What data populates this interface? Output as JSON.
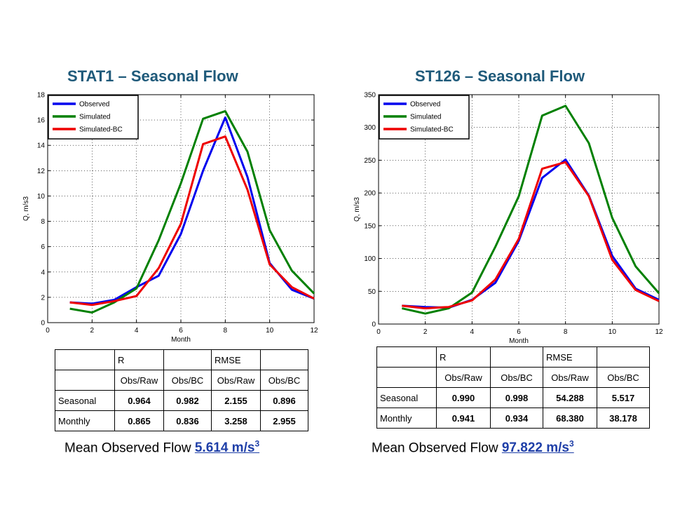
{
  "left": {
    "title": "STAT1  – Seasonal Flow",
    "table": {
      "group_headers": [
        "R",
        "RMSE"
      ],
      "sub_headers": [
        "Obs/Raw",
        "Obs/BC",
        "Obs/Raw",
        "Obs/BC"
      ],
      "rows": [
        {
          "label": "Seasonal",
          "values": [
            "0.964",
            "0.982",
            "2.155",
            "0.896"
          ]
        },
        {
          "label": "Monthly",
          "values": [
            "0.865",
            "0.836",
            "3.258",
            "2.955"
          ]
        }
      ]
    },
    "mean_label": "Mean Observed Flow",
    "mean_value": "5.614 m/s",
    "mean_sup": "3"
  },
  "right": {
    "title": "ST126  – Seasonal Flow",
    "table": {
      "group_headers": [
        "R",
        "RMSE"
      ],
      "sub_headers": [
        "Obs/Raw",
        "Obs/BC",
        "Obs/Raw",
        "Obs/BC"
      ],
      "rows": [
        {
          "label": "Seasonal",
          "values": [
            "0.990",
            "0.998",
            "54.288",
            "5.517"
          ]
        },
        {
          "label": "Monthly",
          "values": [
            "0.941",
            "0.934",
            "68.380",
            "38.178"
          ]
        }
      ]
    },
    "mean_label": "Mean Observed Flow",
    "mean_value": "97.822 m/s",
    "mean_sup": "3"
  },
  "chart_data": [
    {
      "type": "line",
      "xlabel": "Month",
      "ylabel": "Q, m/s3",
      "xlim": [
        0,
        12
      ],
      "ylim": [
        0,
        18
      ],
      "xticks": [
        0,
        2,
        4,
        6,
        8,
        10,
        12
      ],
      "yticks": [
        0,
        2,
        4,
        6,
        8,
        10,
        12,
        14,
        16,
        18
      ],
      "grid": "dotted",
      "legend": "top-left",
      "x": [
        1,
        2,
        3,
        4,
        5,
        6,
        7,
        8,
        9,
        10,
        11,
        12
      ],
      "series": [
        {
          "name": "Observed",
          "color": "#0000ee",
          "values": [
            1.6,
            1.5,
            1.8,
            2.8,
            3.7,
            7.0,
            12.0,
            16.2,
            11.5,
            4.7,
            2.6,
            1.9
          ]
        },
        {
          "name": "Simulated",
          "color": "#008000",
          "values": [
            1.1,
            0.8,
            1.6,
            2.7,
            6.5,
            11.0,
            16.1,
            16.7,
            13.5,
            7.3,
            4.1,
            2.3
          ]
        },
        {
          "name": "Simulated-BC",
          "color": "#ee0000",
          "values": [
            1.6,
            1.4,
            1.7,
            2.1,
            4.3,
            7.8,
            14.1,
            14.7,
            10.5,
            4.6,
            2.8,
            1.9
          ]
        }
      ]
    },
    {
      "type": "line",
      "xlabel": "Month",
      "ylabel": "Q, m/s3",
      "xlim": [
        0,
        12
      ],
      "ylim": [
        0,
        350
      ],
      "xticks": [
        0,
        2,
        4,
        6,
        8,
        10,
        12
      ],
      "yticks": [
        0,
        50,
        100,
        150,
        200,
        250,
        300,
        350
      ],
      "grid": "dotted",
      "legend": "top-left",
      "x": [
        1,
        2,
        3,
        4,
        5,
        6,
        7,
        8,
        9,
        10,
        11,
        12
      ],
      "series": [
        {
          "name": "Observed",
          "color": "#0000ee",
          "values": [
            28,
            26,
            25,
            37,
            63,
            127,
            223,
            251,
            196,
            104,
            54,
            37
          ]
        },
        {
          "name": "Simulated",
          "color": "#008000",
          "values": [
            24,
            16,
            24,
            48,
            118,
            195,
            318,
            333,
            276,
            162,
            88,
            47
          ]
        },
        {
          "name": "Simulated-BC",
          "color": "#ee0000",
          "values": [
            28,
            24,
            26,
            36,
            68,
            130,
            237,
            247,
            195,
            98,
            52,
            35
          ]
        }
      ]
    }
  ]
}
